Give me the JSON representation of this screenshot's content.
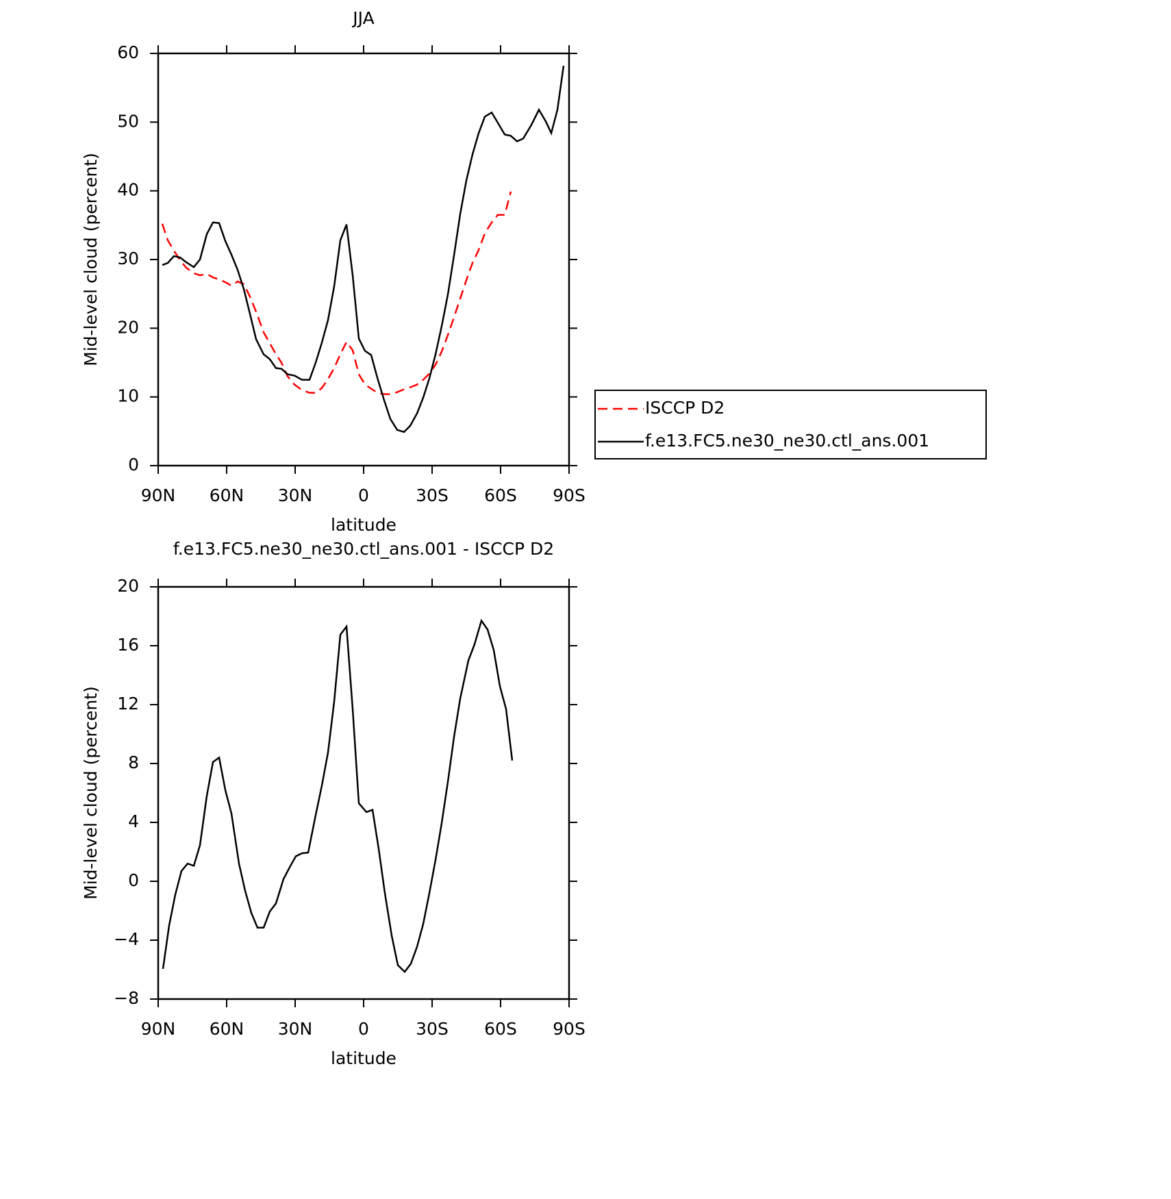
{
  "chart_data": [
    {
      "type": "line",
      "title": "JJA",
      "xlabel": "latitude",
      "ylabel": "Mid-level cloud (percent)",
      "x": [
        88.2,
        85.8,
        83.1,
        80.4,
        77.7,
        74.4,
        71.7,
        68.7,
        66,
        63.3,
        60.6,
        57.9,
        55.2,
        52.5,
        49.8,
        47.1,
        43.8,
        41.1,
        38.4,
        36,
        33.3,
        30.3,
        27,
        23.7,
        21,
        18.3,
        15.6,
        12.9,
        10.2,
        7.5,
        4.8,
        2.1,
        -0.6,
        -3.3,
        -6,
        -9,
        -11.7,
        -14.7,
        -17.7,
        -20.4,
        -23.4,
        -26.1,
        -28.8,
        -31.5,
        -34.2,
        -36.9,
        -39.6,
        -42.3,
        -45,
        -47.7,
        -50.4,
        -53.1,
        -56.1,
        -58.8,
        -61.8,
        -64.5,
        -67.2,
        -69.9,
        -73.5,
        -76.8,
        -79.8,
        -82.2,
        -84.9,
        -87.6
      ],
      "series": [
        {
          "name": "ISCCP D2",
          "color": "#ff0000",
          "dash": true,
          "values": [
            35.2,
            32.8,
            31.3,
            29.9,
            28.8,
            28,
            27.7,
            27.9,
            27.4,
            27.1,
            26.7,
            26.2,
            26.8,
            26.4,
            24.6,
            22.4,
            19.4,
            17.8,
            16.2,
            15,
            13,
            11.8,
            11,
            10.6,
            10.6,
            11.3,
            12.6,
            14.2,
            16.2,
            18,
            16.8,
            13.3,
            11.8,
            11.2,
            10.6,
            10.4,
            10.4,
            10.7,
            11.1,
            11.4,
            11.8,
            12.5,
            13.4,
            14.7,
            16.6,
            19,
            21.6,
            24.3,
            27,
            29.5,
            31.4,
            33.8,
            35.4,
            36.5,
            36.5,
            39.9,
            null,
            null,
            null,
            null,
            null,
            null,
            null,
            null
          ]
        },
        {
          "name": "f.e13.FC5.ne30_ne30.ctl_ans.001",
          "color": "#000000",
          "dash": false,
          "values": [
            29.2,
            29.5,
            30.5,
            30.3,
            29.6,
            28.9,
            30,
            33.7,
            35.4,
            35.3,
            32.7,
            30.7,
            28.5,
            25.7,
            22.1,
            18.4,
            16.2,
            15.5,
            14.2,
            14.1,
            13.3,
            13.1,
            12.5,
            12.5,
            15,
            17.9,
            21.2,
            26.1,
            32.8,
            35.1,
            27.7,
            18.5,
            16.7,
            16.1,
            12.8,
            9.5,
            6.8,
            5.2,
            4.9,
            5.8,
            7.6,
            9.9,
            12.7,
            16.2,
            20.3,
            24.9,
            30.6,
            36.6,
            41.5,
            45.3,
            48.4,
            50.8,
            51.4,
            49.9,
            48.2,
            48,
            47.2,
            47.6,
            49.6,
            51.8,
            50.1,
            48.4,
            51.8,
            58.2
          ]
        }
      ],
      "xlim": [
        90,
        -90
      ],
      "xticks": [
        {
          "value": 90,
          "label": "90N"
        },
        {
          "value": 60,
          "label": "60N"
        },
        {
          "value": 30,
          "label": "30N"
        },
        0,
        {
          "value": -30,
          "label": "30S"
        },
        {
          "value": -60,
          "label": "60S"
        },
        {
          "value": -90,
          "label": "90S"
        }
      ],
      "ylim": [
        0,
        60
      ],
      "yticks": [
        0,
        10,
        20,
        30,
        40,
        50,
        60
      ],
      "legend": "right"
    },
    {
      "type": "line",
      "title": "f.e13.FC5.ne30_ne30.ctl_ans.001 - ISCCP D2",
      "xlabel": "latitude",
      "ylabel": "Mid-level cloud (percent)",
      "x": [
        87.9,
        85.2,
        82.5,
        79.8,
        77.1,
        74.4,
        71.7,
        68.7,
        66,
        63.3,
        60.6,
        57.9,
        54.6,
        51.9,
        49.2,
        46.5,
        43.8,
        41.1,
        38.4,
        35.1,
        32.4,
        29.7,
        27,
        24.3,
        21,
        18.3,
        15.6,
        12.9,
        10.2,
        7.5,
        4.8,
        2.1,
        -1.2,
        -3.9,
        -6.6,
        -9.3,
        -12.3,
        -15,
        -18,
        -20.7,
        -23.4,
        -26.1,
        -28.8,
        -31.5,
        -34.2,
        -36.9,
        -39.6,
        -42.3,
        -45.9,
        -48.6,
        -51.6,
        -54.3,
        -57,
        -59.7,
        -62.4,
        -65.1
      ],
      "series": [
        {
          "color": "#000000",
          "dash": false,
          "values": [
            -5.95,
            -3,
            -0.9,
            0.7,
            1.2,
            1.05,
            2.45,
            5.8,
            8.1,
            8.4,
            6.2,
            4.6,
            1.2,
            -0.65,
            -2.15,
            -3.15,
            -3.15,
            -2.05,
            -1.5,
            0.15,
            0.95,
            1.7,
            1.9,
            1.95,
            4.5,
            6.5,
            8.75,
            12.2,
            16.75,
            17.3,
            11.7,
            5.3,
            4.7,
            4.85,
            2.2,
            -0.8,
            -3.7,
            -5.7,
            -6.15,
            -5.6,
            -4.45,
            -2.9,
            -0.8,
            1.45,
            3.95,
            6.75,
            9.8,
            12.4,
            15,
            16.1,
            17.7,
            17.1,
            15.7,
            13.25,
            11.7,
            8.2
          ]
        }
      ],
      "xlim": [
        90,
        -90
      ],
      "xticks": [
        {
          "value": 90,
          "label": "90N"
        },
        {
          "value": 60,
          "label": "60N"
        },
        {
          "value": 30,
          "label": "30N"
        },
        0,
        {
          "value": -30,
          "label": "30S"
        },
        {
          "value": -60,
          "label": "60S"
        },
        {
          "value": -90,
          "label": "90S"
        }
      ],
      "ylim": [
        -8,
        20
      ],
      "yticks": [
        {
          "value": -8,
          "label": "−8"
        },
        {
          "value": -4,
          "label": "−4"
        },
        0,
        4,
        8,
        12,
        16,
        20
      ]
    }
  ]
}
